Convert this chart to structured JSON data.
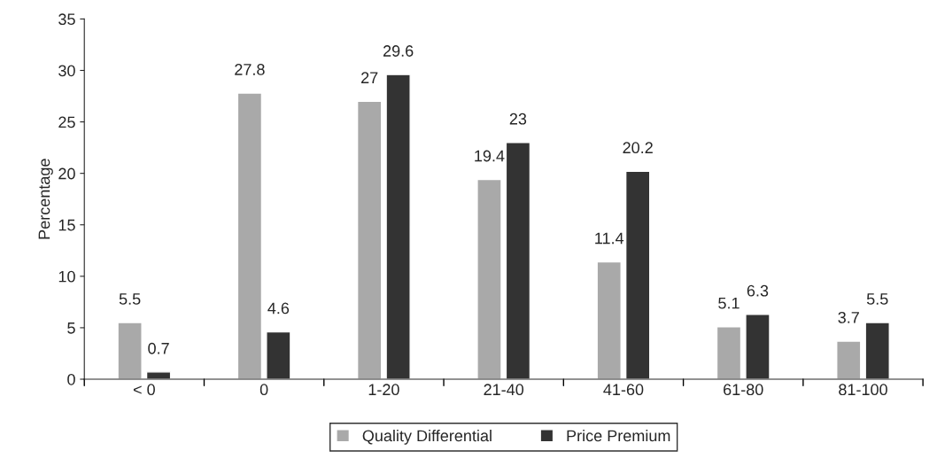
{
  "chart_data": {
    "type": "bar",
    "ylabel": "Percentage",
    "categories": [
      "< 0",
      "0",
      "1-20",
      "21-40",
      "41-60",
      "61-80",
      "81-100"
    ],
    "series": [
      {
        "name": "Quality Differential",
        "color": "#a9a9a9",
        "values": [
          5.5,
          27.8,
          27,
          19.4,
          11.4,
          5.1,
          3.7
        ]
      },
      {
        "name": "Price Premium",
        "color": "#333333",
        "values": [
          0.7,
          4.6,
          29.6,
          23,
          20.2,
          6.3,
          5.5
        ]
      }
    ],
    "ylim": [
      0,
      35
    ],
    "yticks": [
      0,
      5,
      10,
      15,
      20,
      25,
      30,
      35
    ],
    "data_labels": true,
    "grid": false,
    "legend": "bottom"
  }
}
